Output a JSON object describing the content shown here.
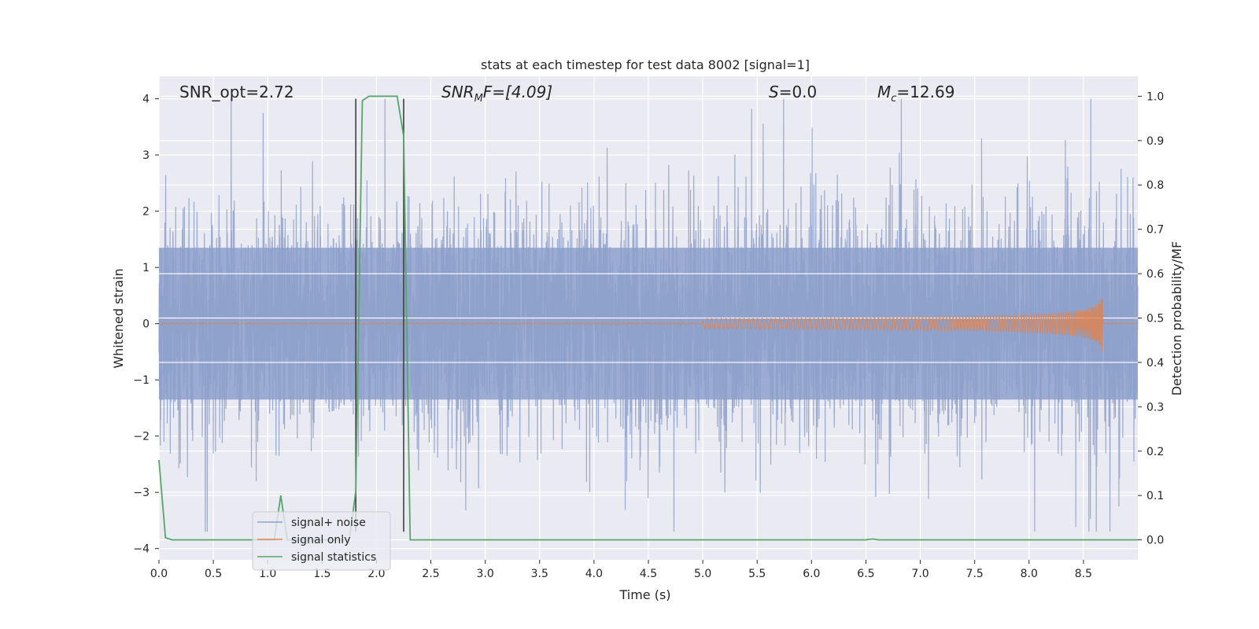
{
  "chart_data": {
    "type": "line",
    "title": "stats at each timestep for test data 8002 [signal=1]",
    "xlabel": "Time (s)",
    "ylabel": "Whitened strain",
    "y2label": "Detection probability/MF",
    "xlim": [
      0.0,
      9.0
    ],
    "ylim": [
      -4.2,
      4.4
    ],
    "y2lim": [
      -0.045,
      1.045
    ],
    "xticks": [
      "0.0",
      "0.5",
      "1.0",
      "1.5",
      "2.0",
      "2.5",
      "3.0",
      "3.5",
      "4.0",
      "4.5",
      "5.0",
      "5.5",
      "6.0",
      "6.5",
      "7.0",
      "7.5",
      "8.0",
      "8.5"
    ],
    "yticks": [
      "4",
      "3",
      "2",
      "1",
      "0",
      "−1",
      "−2",
      "−3",
      "−4"
    ],
    "y2ticks": [
      "1.0",
      "0.9",
      "0.8",
      "0.7",
      "0.6",
      "0.5",
      "0.4",
      "0.3",
      "0.2",
      "0.1",
      "0.0"
    ],
    "grid": true,
    "legend_position": "lower-left",
    "annotations": {
      "snr_opt": "SNR_opt=2.72",
      "snr_mf_main": "SNR",
      "snr_mf_sub": "M",
      "snr_mf_rest": "F=[4.09]",
      "s_main": "S",
      "s_rest": "=0.0",
      "mc_main": "M",
      "mc_sub": "c",
      "mc_rest": "=12.69"
    },
    "vlines": [
      1.81,
      2.25
    ],
    "series": [
      {
        "name": "signal+ noise",
        "color": "#8da0cb",
        "style": "noise",
        "sample_rate_note": "dense whitened noise, envelope approx ±2 to ±4",
        "x_range": [
          0.0,
          9.0
        ],
        "amplitude_typical": 1.4,
        "amplitude_max": 4.0
      },
      {
        "name": "signal only",
        "color": "#dd8452",
        "style": "chirp",
        "x_range": [
          0.0,
          8.68
        ],
        "merger_time": 8.68,
        "peak_amplitude": 0.58
      },
      {
        "name": "signal statistics",
        "color": "#55a868",
        "axis": "right",
        "x": [
          0.0,
          0.06,
          0.12,
          0.18,
          1.0,
          1.06,
          1.12,
          1.18,
          1.24,
          1.3,
          1.75,
          1.81,
          1.87,
          1.93,
          2.0,
          2.1,
          2.19,
          2.25,
          2.31,
          2.37,
          2.43,
          5.0,
          6.5,
          6.56,
          6.62,
          7.0,
          9.0
        ],
        "values": [
          0.18,
          0.005,
          0.0,
          0.0,
          0.0,
          0.0,
          0.1,
          0.0,
          0.0,
          0.0,
          0.0,
          0.11,
          0.99,
          1.0,
          1.0,
          1.0,
          1.0,
          0.91,
          0.0,
          0.0,
          0.0,
          0.0,
          0.0,
          0.002,
          0.0,
          0.0,
          0.0
        ]
      }
    ]
  },
  "colors": {
    "axes_bg": "#eaeaf2",
    "grid": "#ffffff",
    "noise": "#8da0cb",
    "signal": "#dd8452",
    "stats": "#55a868",
    "vline": "#404040"
  }
}
